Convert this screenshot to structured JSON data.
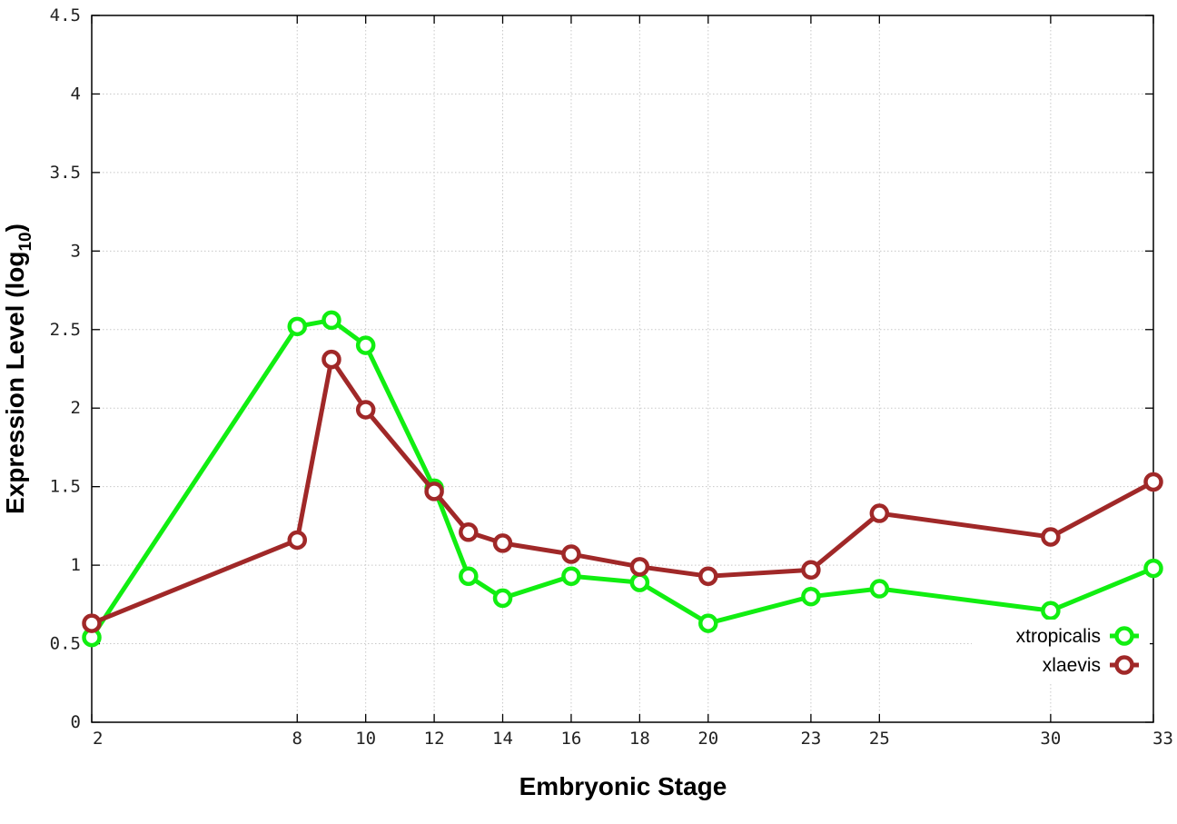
{
  "chart_data": {
    "type": "line",
    "xlabel": "Embryonic Stage",
    "ylabel_main": "Expression Level (log",
    "ylabel_sub": "10",
    "ylabel_close": ")",
    "ylim": [
      0,
      4.5
    ],
    "xlim": [
      2,
      33
    ],
    "y_ticks": [
      0,
      0.5,
      1,
      1.5,
      2,
      2.5,
      3,
      3.5,
      4,
      4.5
    ],
    "y_tick_labels": [
      "0",
      "0.5",
      "1",
      "1.5",
      "2",
      "2.5",
      "3",
      "3.5",
      "4",
      "4.5"
    ],
    "x_ticks": [
      2,
      8,
      10,
      12,
      14,
      16,
      18,
      20,
      23,
      25,
      30,
      33
    ],
    "x_tick_labels": [
      "2",
      "8",
      "10",
      "12",
      "14",
      "16",
      "18",
      "20",
      "23",
      "25",
      "30",
      "33"
    ],
    "grid": true,
    "legend_position": "bottom-right",
    "series": [
      {
        "name": "xtropicalis",
        "color": "#11ee11",
        "x": [
          2,
          8,
          9,
          10,
          12,
          13,
          14,
          16,
          18,
          20,
          23,
          25,
          30,
          33
        ],
        "y": [
          0.54,
          2.52,
          2.56,
          2.4,
          1.49,
          0.93,
          0.79,
          0.93,
          0.89,
          0.63,
          0.8,
          0.85,
          0.71,
          0.98
        ]
      },
      {
        "name": "xlaevis",
        "color": "#a02828",
        "x": [
          2,
          8,
          9,
          10,
          12,
          13,
          14,
          16,
          18,
          20,
          23,
          25,
          30,
          33
        ],
        "y": [
          0.63,
          1.16,
          2.31,
          1.99,
          1.47,
          1.21,
          1.14,
          1.07,
          0.99,
          0.93,
          0.97,
          1.33,
          1.18,
          1.53
        ]
      }
    ]
  }
}
